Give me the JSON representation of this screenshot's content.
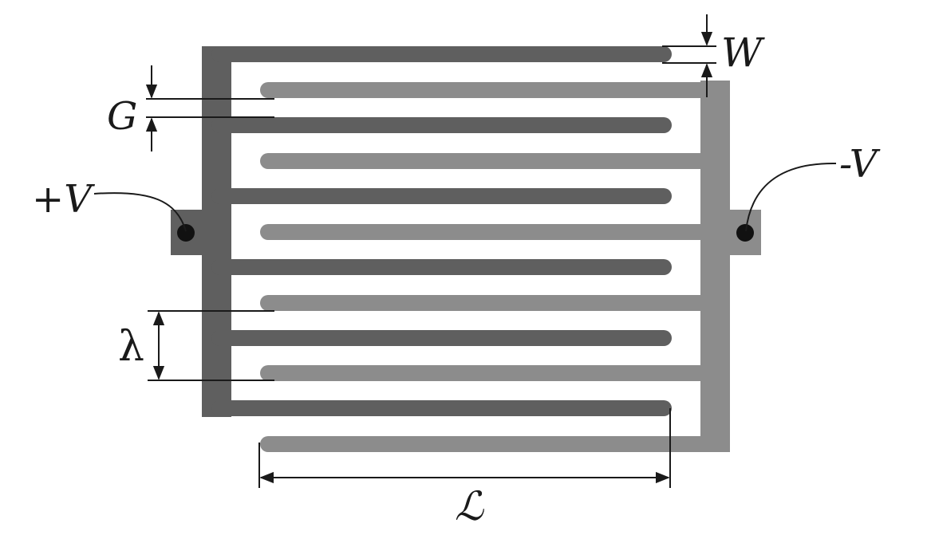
{
  "labels": {
    "w": "W",
    "g": "G",
    "plus_v": "+V",
    "minus_v": "-V",
    "lambda": "λ",
    "length": "ℒ"
  },
  "colors": {
    "positive_electrode": "#5f5f5f",
    "negative_electrode": "#8c8c8c",
    "line": "#1a1a1a"
  }
}
